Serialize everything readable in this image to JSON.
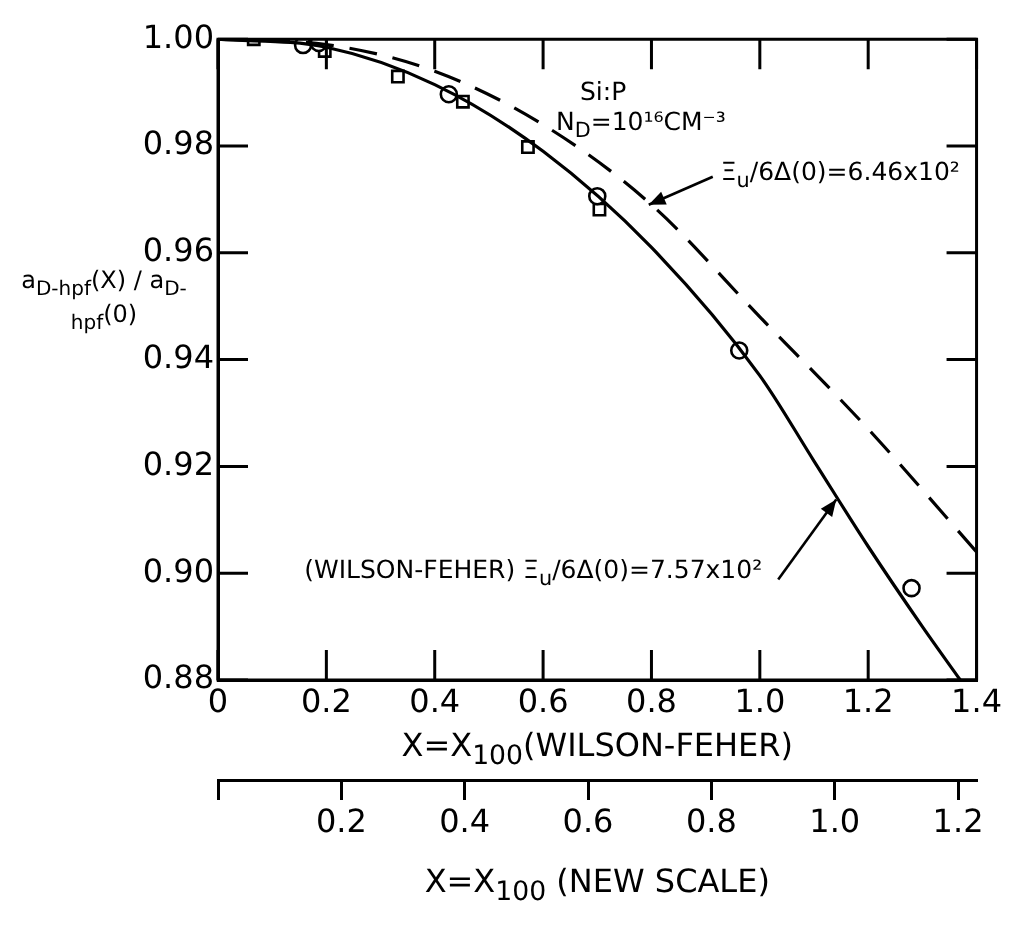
{
  "chart_data": {
    "type": "scatter",
    "ylabel": "a$_{D-hpf}$(X) / a$_{D-hpf}$(0)",
    "xlabel": "X=X$_{100}$(WILSON-FEHER)",
    "x2label": "X=X$_{100}$ (NEW SCALE)",
    "xlim": [
      0,
      1.4
    ],
    "xticks": [
      0,
      0.2,
      0.4,
      0.6,
      0.8,
      {
        "value": 1.0,
        "label": "1.0"
      },
      1.2,
      1.4
    ],
    "x2lim": [
      0,
      1.23
    ],
    "x2ticks": [
      {
        "value": 0,
        "label": null
      },
      0.2,
      0.4,
      0.6,
      0.8,
      {
        "value": 1.0,
        "label": "1.0"
      },
      1.2
    ],
    "ylim": [
      0.88,
      1.0
    ],
    "yticks": [
      {
        "value": 0.88,
        "label": "0.88"
      },
      {
        "value": 0.9,
        "label": "0.90"
      },
      0.92,
      0.94,
      0.96,
      0.98,
      {
        "value": 1.0,
        "label": "1.00"
      }
    ],
    "grid": false,
    "legend": false,
    "series": [
      {
        "type": "line",
        "color": "#000000",
        "marker": "none",
        "line_style": "solid",
        "x": [
          0,
          0.2,
          0.4,
          0.6,
          0.8,
          1.0,
          1.1,
          1.2,
          1.3,
          1.37
        ],
        "values": [
          1.0,
          0.9985,
          0.9915,
          0.979,
          0.961,
          0.937,
          0.921,
          0.905,
          0.89,
          0.88
        ]
      },
      {
        "type": "line",
        "color": "#000000",
        "marker": "none",
        "line_style": "dashed",
        "x": [
          0,
          0.2,
          0.4,
          0.6,
          0.8,
          1.0,
          1.2,
          1.4
        ],
        "values": [
          1.0,
          0.999,
          0.994,
          0.984,
          0.969,
          0.948,
          0.927,
          0.904
        ]
      },
      {
        "type": "scatter",
        "color": "#000000",
        "marker": "circle",
        "x": [
          0.157,
          0.186,
          0.426,
          0.7,
          0.962,
          1.28
        ],
        "values": [
          0.9989,
          0.9993,
          0.9897,
          0.9706,
          0.9417,
          0.8972
        ]
      },
      {
        "type": "scatter",
        "color": "#000000",
        "marker": "square",
        "x": [
          0.066,
          0.197,
          0.332,
          0.452,
          0.572,
          0.704
        ],
        "values": [
          1.0,
          0.9978,
          0.993,
          0.9883,
          0.9798,
          0.9681
        ]
      }
    ],
    "annotations": [
      "Si:P",
      "N$_{D}$=10¹⁶CM⁻³",
      {
        "text": "Ξ$_{u}$/6Δ(0)=6.46x10²",
        "x": 0.795,
        "y": 0.969
      },
      {
        "text": "(WILSON-FEHER) Ξ$_{u}$/6Δ(0)=7.57x10²",
        "x": 1.141,
        "y": 0.9138
      }
    ]
  }
}
